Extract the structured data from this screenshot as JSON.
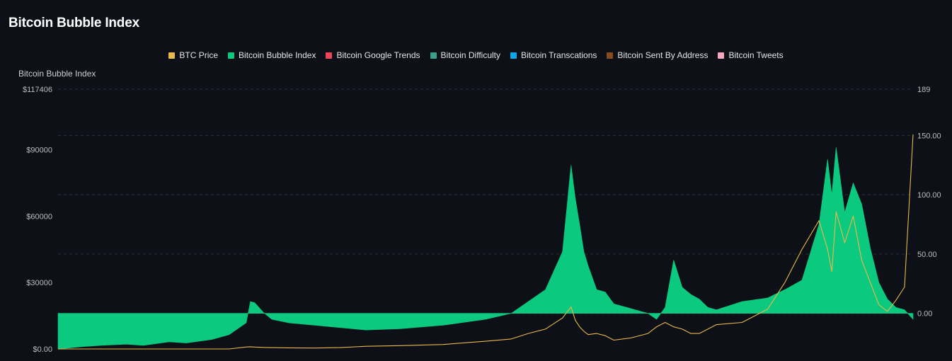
{
  "page": {
    "title": "Bitcoin Bubble Index"
  },
  "legend": [
    {
      "label": "BTC Price",
      "color": "#e9b949",
      "icon": "square"
    },
    {
      "label": "Bitcoin Bubble Index",
      "color": "#0bc97f",
      "icon": "square"
    },
    {
      "label": "Bitcoin Google Trends",
      "color": "#f0445a",
      "icon": "square"
    },
    {
      "label": "Bitcoin Difficulty",
      "color": "#3b9e8c",
      "icon": "square"
    },
    {
      "label": "Bitcoin Transcations",
      "color": "#0ea5e9",
      "icon": "square"
    },
    {
      "label": "Bitcoin Sent By Address",
      "color": "#8a4b1f",
      "icon": "square"
    },
    {
      "label": "Bitcoin Tweets",
      "color": "#f4a8c0",
      "icon": "square"
    }
  ],
  "chart_data": {
    "type": "area",
    "title": "Bitcoin Bubble Index",
    "ylabel": "Bitcoin Bubble Index",
    "y_left": {
      "scale": "linear",
      "range": [
        0,
        117406
      ],
      "tick_values": [
        0,
        30000,
        60000,
        90000,
        117406
      ],
      "tick_labels": [
        "$0.00",
        "$30000",
        "$60000",
        "$90000",
        "$117406"
      ]
    },
    "y_right": {
      "scale": "linear",
      "range": [
        -30,
        189
      ],
      "tick_values": [
        0,
        50,
        100,
        150,
        189
      ],
      "tick_labels": [
        "0.00",
        "50.00",
        "100.00",
        "150.00",
        "189"
      ]
    },
    "grid": true,
    "legend_position": "top-center",
    "x": [
      0,
      3,
      5,
      8,
      10,
      13,
      15,
      18,
      20,
      22,
      22.5,
      23,
      24,
      25,
      27,
      30,
      33,
      36,
      40,
      45,
      50,
      53,
      55,
      57,
      59,
      60,
      60.5,
      61,
      61.5,
      62,
      63,
      64,
      65,
      67,
      69,
      70,
      71,
      72,
      73,
      74,
      75,
      76,
      77,
      80,
      83,
      85,
      87,
      89,
      90,
      90.5,
      91,
      92,
      93,
      94,
      95,
      96,
      97,
      98,
      99,
      100
    ],
    "series": [
      {
        "name": "Bitcoin Bubble Index",
        "axis": "right",
        "values": [
          -30,
          -28,
          -27,
          -26,
          -27,
          -24,
          -25,
          -22,
          -18,
          -8,
          10,
          9,
          1,
          -5,
          -8,
          -10,
          -12,
          -14,
          -13,
          -10,
          -5,
          0,
          10,
          20,
          52,
          125,
          97,
          75,
          52,
          40,
          20,
          18,
          8,
          4,
          0,
          -5,
          5,
          45,
          22,
          16,
          12,
          5,
          3,
          10,
          13,
          20,
          28,
          75,
          130,
          100,
          140,
          85,
          110,
          92,
          55,
          26,
          12,
          5,
          3,
          -5
        ]
      },
      {
        "name": "BTC Price",
        "axis": "left",
        "values": [
          0,
          0,
          0,
          0,
          0,
          0,
          0,
          0,
          0,
          900,
          1000,
          850,
          700,
          600,
          500,
          400,
          600,
          1200,
          1500,
          2000,
          3500,
          4500,
          7000,
          9000,
          14000,
          19000,
          13000,
          10000,
          8000,
          6500,
          7000,
          6000,
          4000,
          5000,
          7000,
          10000,
          12000,
          10000,
          9000,
          7000,
          7000,
          9000,
          11000,
          12000,
          18000,
          30000,
          45000,
          58000,
          45000,
          35000,
          62000,
          48000,
          60000,
          40000,
          30000,
          20000,
          17000,
          22000,
          28000,
          97000
        ]
      }
    ]
  }
}
